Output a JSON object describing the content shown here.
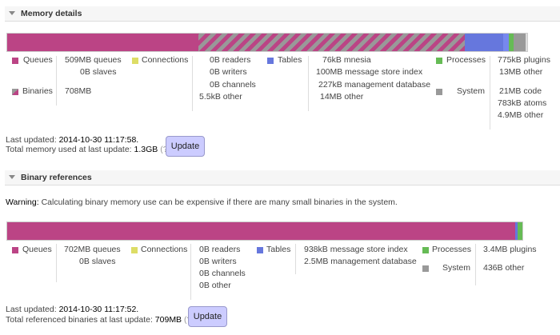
{
  "colors": {
    "queues": "#bb4485",
    "connections": "#dddd66",
    "tables": "#6677dd",
    "processes": "#66bb55",
    "system": "#999999"
  },
  "memory": {
    "title": "Memory details",
    "legend": {
      "queues": "Queues",
      "binaries": "Binaries",
      "connections": "Connections",
      "tables": "Tables",
      "processes": "Processes",
      "system": "System"
    },
    "queues": [
      "509MB queues",
      "0B slaves"
    ],
    "binaries": "708MB",
    "connections": [
      "0B readers",
      "0B writers",
      "0B channels",
      "5.5kB other"
    ],
    "tables": [
      "76kB mnesia",
      "100MB message store index",
      "227kB management database",
      "14MB other"
    ],
    "processes": [
      "775kB plugins",
      "13MB other"
    ],
    "system": [
      "21MB code",
      "783kB atoms",
      "4.9MB other"
    ],
    "last_updated_label": "Last updated:",
    "last_updated": "2014-10-30 11:17:58.",
    "total_label": "Total memory used at last update:",
    "total": "1.3GB",
    "help": "(?)",
    "update_button": "Update"
  },
  "binary": {
    "title": "Binary references",
    "warning_label": "Warning:",
    "warning": "Calculating binary memory use can be expensive if there are many small binaries in the system.",
    "legend": {
      "queues": "Queues",
      "connections": "Connections",
      "tables": "Tables",
      "processes": "Processes",
      "system": "System"
    },
    "queues": [
      "702MB queues",
      "0B slaves"
    ],
    "connections": [
      "0B readers",
      "0B writers",
      "0B channels",
      "0B other"
    ],
    "tables": [
      "938kB message store index",
      "2.5MB management database"
    ],
    "processes": [
      "3.4MB plugins"
    ],
    "system": [
      "436B other"
    ],
    "last_updated_label": "Last updated:",
    "last_updated": "2014-10-30 11:17:52.",
    "total_label": "Total referenced binaries at last update:",
    "total": "709MB",
    "help": "(?)",
    "update_button": "Update"
  }
}
